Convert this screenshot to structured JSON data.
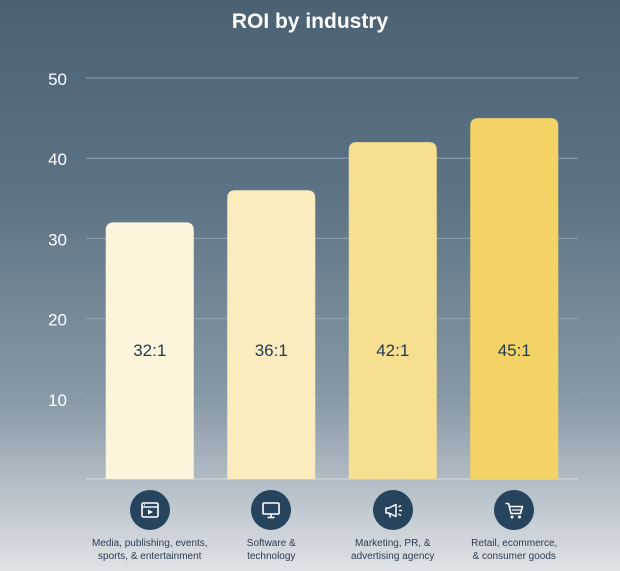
{
  "chart_data": {
    "type": "bar",
    "title": "ROI by industry",
    "xlabel": "",
    "ylabel": "",
    "ylim": [
      0,
      50
    ],
    "yticks": [
      10,
      20,
      30,
      40,
      50
    ],
    "grid": true,
    "categories": [
      "Media, publishing, events,\nsports, & entertainment",
      "Software &\ntechnology",
      "Marketing, PR, &\nadvertising agency",
      "Retail, ecommerce,\n& consumer goods"
    ],
    "values": [
      32,
      36,
      42,
      45
    ],
    "data_labels": [
      "32:1",
      "36:1",
      "42:1",
      "45:1"
    ],
    "icons": [
      "video-player-icon",
      "monitor-icon",
      "megaphone-icon",
      "shopping-cart-icon"
    ],
    "bar_colors": [
      "#fdf5db",
      "#fbecbf",
      "#f7df91",
      "#f4d366"
    ],
    "colors": {
      "label_text": "#1f3a52",
      "icon_bg": "#26445e",
      "grid": "#8fa2b1"
    }
  }
}
